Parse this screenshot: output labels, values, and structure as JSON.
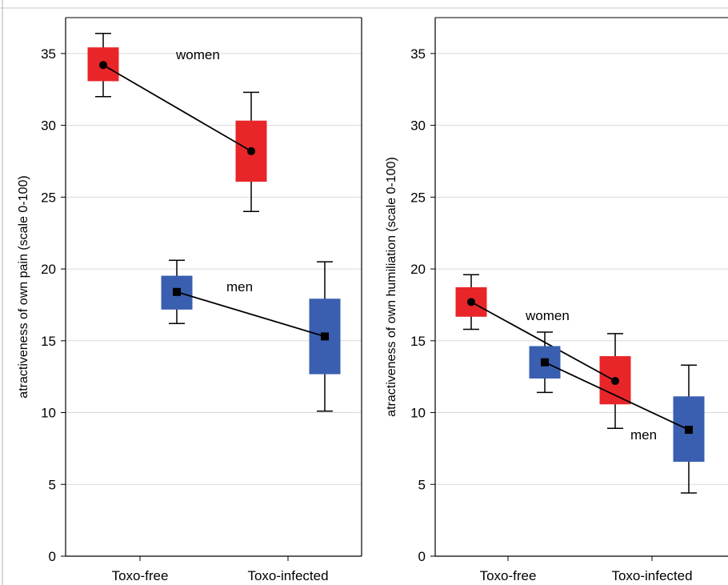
{
  "chart_data": [
    {
      "type": "box",
      "ylabel": "atractiveness of own pain (scale 0-100)",
      "categories": [
        "Toxo-free",
        "Toxo-infected"
      ],
      "ylim": [
        0,
        37.5
      ],
      "yticks": [
        0,
        5,
        10,
        15,
        20,
        25,
        30,
        35
      ],
      "grid": true,
      "series": [
        {
          "name": "women",
          "color": "#e8262a",
          "marker": "circle",
          "mean": [
            34.2,
            28.2
          ],
          "box": [
            [
              33.1,
              35.4
            ],
            [
              26.1,
              30.3
            ]
          ],
          "whisker": [
            [
              32.0,
              36.4
            ],
            [
              24.0,
              32.3
            ]
          ]
        },
        {
          "name": "men",
          "color": "#3a5fb0",
          "marker": "square",
          "mean": [
            18.4,
            15.3
          ],
          "box": [
            [
              17.2,
              19.5
            ],
            [
              12.7,
              17.9
            ]
          ],
          "whisker": [
            [
              16.2,
              20.6
            ],
            [
              10.1,
              20.5
            ]
          ]
        }
      ]
    },
    {
      "type": "box",
      "ylabel": "atractiveness of own humiliation (scale 0-100)",
      "categories": [
        "Toxo-free",
        "Toxo-infected"
      ],
      "ylim": [
        0,
        37.5
      ],
      "yticks": [
        0,
        5,
        10,
        15,
        20,
        25,
        30,
        35
      ],
      "grid": true,
      "series": [
        {
          "name": "women",
          "color": "#e8262a",
          "marker": "circle",
          "mean": [
            17.7,
            12.2
          ],
          "box": [
            [
              16.7,
              18.7
            ],
            [
              10.6,
              13.9
            ]
          ],
          "whisker": [
            [
              15.8,
              19.6
            ],
            [
              8.9,
              15.5
            ]
          ]
        },
        {
          "name": "men",
          "color": "#3a5fb0",
          "marker": "square",
          "mean": [
            13.5,
            8.8
          ],
          "box": [
            [
              12.4,
              14.6
            ],
            [
              6.6,
              11.1
            ]
          ],
          "whisker": [
            [
              11.4,
              15.6
            ],
            [
              4.4,
              13.3
            ]
          ]
        }
      ]
    }
  ]
}
